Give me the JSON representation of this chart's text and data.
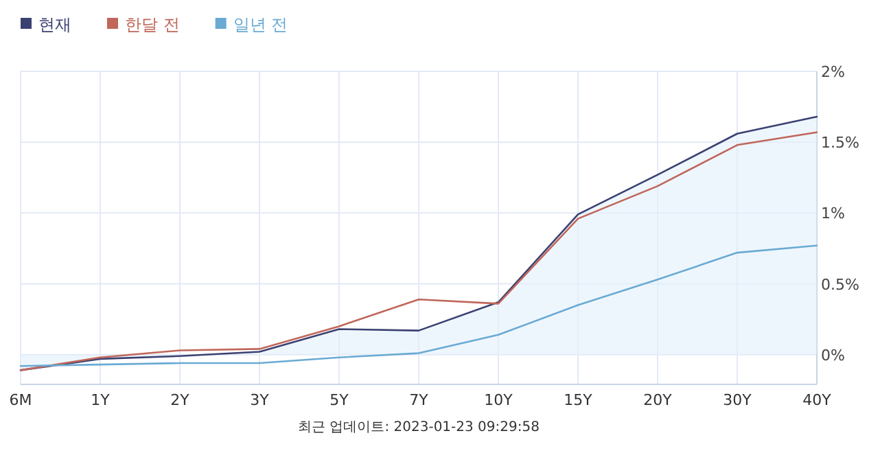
{
  "chart_data": {
    "type": "line",
    "categories": [
      "6M",
      "1Y",
      "2Y",
      "3Y",
      "5Y",
      "7Y",
      "10Y",
      "15Y",
      "20Y",
      "30Y",
      "40Y"
    ],
    "series": [
      {
        "name": "현재",
        "color": "#3b4171",
        "type": "area",
        "values": [
          -0.11,
          -0.03,
          -0.01,
          0.02,
          0.18,
          0.17,
          0.37,
          0.99,
          1.27,
          1.56,
          1.68
        ]
      },
      {
        "name": "한달 전",
        "color": "#c0665a",
        "values": [
          -0.11,
          -0.02,
          0.03,
          0.04,
          0.2,
          0.39,
          0.36,
          0.96,
          1.19,
          1.48,
          1.57
        ]
      },
      {
        "name": "일년 전",
        "color": "#6aaad3",
        "values": [
          -0.08,
          -0.07,
          -0.06,
          -0.06,
          -0.02,
          0.01,
          0.14,
          0.35,
          0.53,
          0.72,
          0.77
        ]
      }
    ],
    "ylim": [
      -0.21,
      2
    ],
    "yticks": [
      {
        "value": 0,
        "label": "0%"
      },
      {
        "value": 0.5,
        "label": "0.5%"
      },
      {
        "value": 1,
        "label": "1%"
      },
      {
        "value": 1.5,
        "label": "1.5%"
      },
      {
        "value": 2,
        "label": "2%"
      }
    ],
    "grid": true,
    "legend": "top left",
    "marker": "none",
    "line_style": "solid",
    "annotations": [
      "최근 업데이트: 2023-01-23 09:29:58"
    ]
  }
}
